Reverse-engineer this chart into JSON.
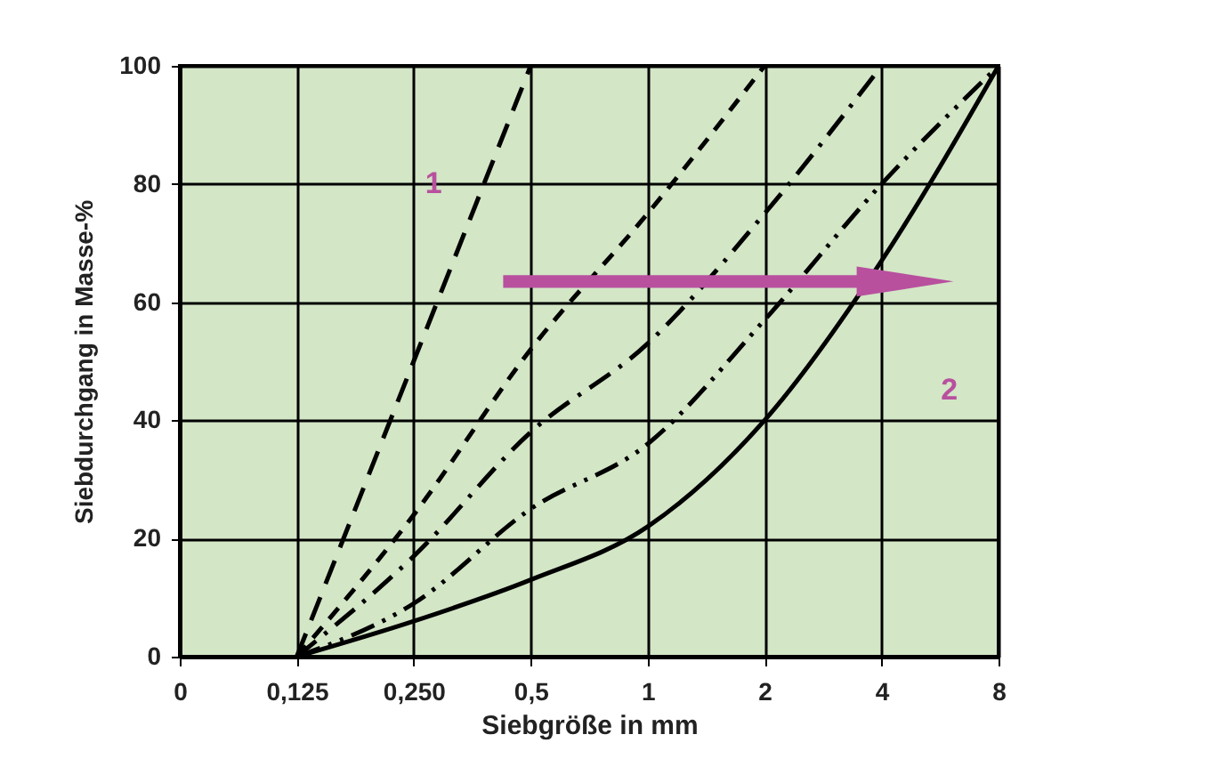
{
  "chart_data": {
    "type": "line",
    "xlabel": "Siebgröße in mm",
    "ylabel": "Siebdurchgang in Masse-%",
    "categories": [
      "0",
      "0,125",
      "0,250",
      "0,5",
      "1",
      "2",
      "4",
      "8"
    ],
    "series": [
      {
        "color": "#000000",
        "line_style": "dashed",
        "values": [
          null,
          0,
          50,
          100,
          null,
          null,
          null,
          null
        ]
      },
      {
        "color": "#000000",
        "line_style": "dashed",
        "values": [
          null,
          0,
          24,
          52,
          75,
          100,
          null,
          null
        ]
      },
      {
        "color": "#000000",
        "line_style": "dashed",
        "values": [
          null,
          0,
          17,
          38,
          53,
          75,
          100,
          null
        ]
      },
      {
        "color": "#000000",
        "line_style": "dotted",
        "values": [
          null,
          0,
          9,
          25,
          36,
          57,
          80,
          100
        ]
      },
      {
        "color": "#000000",
        "line_style": "solid",
        "values": [
          null,
          0,
          6,
          13,
          22,
          40,
          67,
          100
        ]
      }
    ],
    "annotations": [
      "1",
      "2"
    ],
    "ylim": [
      0,
      100
    ],
    "yticks": [
      0,
      20,
      40,
      60,
      80,
      100
    ],
    "grid": true,
    "marker": "none"
  }
}
